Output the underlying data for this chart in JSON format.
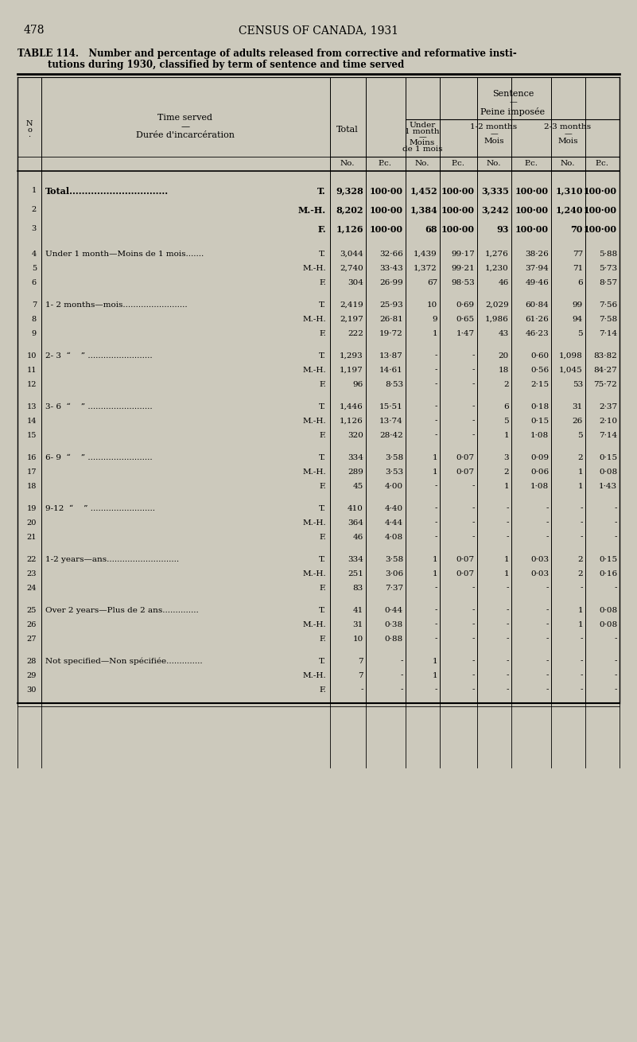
{
  "page_num": "478",
  "page_title": "CENSUS OF CANADA, 1931",
  "table_title_line1": "TABLE 114.   Number and percentage of adults released from corrective and reformative insti-",
  "table_title_line2": "tutions during 1930, classified by term of sentence and time served",
  "bg_color": "#ccc9bc",
  "rows": [
    {
      "no": "1",
      "label": "Total................................",
      "suffix": "T.",
      "indent": false,
      "bold": true,
      "d": [
        "9,328",
        "100·00",
        "1,452",
        "100·00",
        "3,335",
        "100·00",
        "1,310",
        "100·00"
      ]
    },
    {
      "no": "2",
      "label": "M.-H.",
      "suffix": "",
      "indent": true,
      "bold": true,
      "d": [
        "8,202",
        "100·00",
        "1,384",
        "100·00",
        "3,242",
        "100·00",
        "1,240",
        "100·00"
      ]
    },
    {
      "no": "3",
      "label": "F.",
      "suffix": "",
      "indent": true,
      "bold": true,
      "d": [
        "1,126",
        "100·00",
        "68",
        "100·00",
        "93",
        "100·00",
        "70",
        "100·00"
      ]
    },
    {
      "no": "4",
      "label": "Under 1 month—Moins de 1 mois.......",
      "suffix": "T.",
      "indent": false,
      "bold": false,
      "d": [
        "3,044",
        "32·66",
        "1,439",
        "99·17",
        "1,276",
        "38·26",
        "77",
        "5·88"
      ]
    },
    {
      "no": "5",
      "label": "M.-H.",
      "suffix": "",
      "indent": true,
      "bold": false,
      "d": [
        "2,740",
        "33·43",
        "1,372",
        "99·21",
        "1,230",
        "37·94",
        "71",
        "5·73"
      ]
    },
    {
      "no": "6",
      "label": "F.",
      "suffix": "",
      "indent": true,
      "bold": false,
      "d": [
        "304",
        "26·99",
        "67",
        "98·53",
        "46",
        "49·46",
        "6",
        "8·57"
      ]
    },
    {
      "no": "7",
      "label": "1- 2 months—mois.........................",
      "suffix": "T.",
      "indent": false,
      "bold": false,
      "d": [
        "2,419",
        "25·93",
        "10",
        "0·69",
        "2,029",
        "60·84",
        "99",
        "7·56"
      ]
    },
    {
      "no": "8",
      "label": "M.-H.",
      "suffix": "",
      "indent": true,
      "bold": false,
      "d": [
        "2,197",
        "26·81",
        "9",
        "0·65",
        "1,986",
        "61·26",
        "94",
        "7·58"
      ]
    },
    {
      "no": "9",
      "label": "F.",
      "suffix": "",
      "indent": true,
      "bold": false,
      "d": [
        "222",
        "19·72",
        "1",
        "1·47",
        "43",
        "46·23",
        "5",
        "7·14"
      ]
    },
    {
      "no": "10",
      "label": "2- 3  “    ” .........................",
      "suffix": "T.",
      "indent": false,
      "bold": false,
      "d": [
        "1,293",
        "13·87",
        "-",
        "-",
        "20",
        "0·60",
        "1,098",
        "83·82"
      ]
    },
    {
      "no": "11",
      "label": "M.-H.",
      "suffix": "",
      "indent": true,
      "bold": false,
      "d": [
        "1,197",
        "14·61",
        "-",
        "-",
        "18",
        "0·56",
        "1,045",
        "84·27"
      ]
    },
    {
      "no": "12",
      "label": "F.",
      "suffix": "",
      "indent": true,
      "bold": false,
      "d": [
        "96",
        "8·53",
        "-",
        "-",
        "2",
        "2·15",
        "53",
        "75·72"
      ]
    },
    {
      "no": "13",
      "label": "3- 6  “    ” .........................",
      "suffix": "T.",
      "indent": false,
      "bold": false,
      "d": [
        "1,446",
        "15·51",
        "-",
        "-",
        "6",
        "0·18",
        "31",
        "2·37"
      ]
    },
    {
      "no": "14",
      "label": "M.-H.",
      "suffix": "",
      "indent": true,
      "bold": false,
      "d": [
        "1,126",
        "13·74",
        "-",
        "-",
        "5",
        "0·15",
        "26",
        "2·10"
      ]
    },
    {
      "no": "15",
      "label": "F.",
      "suffix": "",
      "indent": true,
      "bold": false,
      "d": [
        "320",
        "28·42",
        "-",
        "-",
        "1",
        "1·08",
        "5",
        "7·14"
      ]
    },
    {
      "no": "16",
      "label": "6- 9  “    ” .........................",
      "suffix": "T.",
      "indent": false,
      "bold": false,
      "d": [
        "334",
        "3·58",
        "1",
        "0·07",
        "3",
        "0·09",
        "2",
        "0·15"
      ]
    },
    {
      "no": "17",
      "label": "M.-H.",
      "suffix": "",
      "indent": true,
      "bold": false,
      "d": [
        "289",
        "3·53",
        "1",
        "0·07",
        "2",
        "0·06",
        "1",
        "0·08"
      ]
    },
    {
      "no": "18",
      "label": "F.",
      "suffix": "",
      "indent": true,
      "bold": false,
      "d": [
        "45",
        "4·00",
        "-",
        "-",
        "1",
        "1·08",
        "1",
        "1·43"
      ]
    },
    {
      "no": "19",
      "label": "9-12  “    ” .........................",
      "suffix": "T.",
      "indent": false,
      "bold": false,
      "d": [
        "410",
        "4·40",
        "-",
        "-",
        "-",
        "-",
        "-",
        "-"
      ]
    },
    {
      "no": "20",
      "label": "M.-H.",
      "suffix": "",
      "indent": true,
      "bold": false,
      "d": [
        "364",
        "4·44",
        "-",
        "-",
        "-",
        "-",
        "-",
        "-"
      ]
    },
    {
      "no": "21",
      "label": "F.",
      "suffix": "",
      "indent": true,
      "bold": false,
      "d": [
        "46",
        "4·08",
        "-",
        "-",
        "-",
        "-",
        "-",
        "-"
      ]
    },
    {
      "no": "22",
      "label": "1-2 years—ans............................",
      "suffix": "T.",
      "indent": false,
      "bold": false,
      "d": [
        "334",
        "3·58",
        "1",
        "0·07",
        "1",
        "0·03",
        "2",
        "0·15"
      ]
    },
    {
      "no": "23",
      "label": "M.-H.",
      "suffix": "",
      "indent": true,
      "bold": false,
      "d": [
        "251",
        "3·06",
        "1",
        "0·07",
        "1",
        "0·03",
        "2",
        "0·16"
      ]
    },
    {
      "no": "24",
      "label": "F.",
      "suffix": "",
      "indent": true,
      "bold": false,
      "d": [
        "83",
        "7·37",
        "-",
        "-",
        "-",
        "-",
        "-",
        "-"
      ]
    },
    {
      "no": "25",
      "label": "Over 2 years—Plus de 2 ans..............",
      "suffix": "T.",
      "indent": false,
      "bold": false,
      "d": [
        "41",
        "0·44",
        "-",
        "-",
        "-",
        "-",
        "1",
        "0·08"
      ]
    },
    {
      "no": "26",
      "label": "M.-H.",
      "suffix": "",
      "indent": true,
      "bold": false,
      "d": [
        "31",
        "0·38",
        "-",
        "-",
        "-",
        "-",
        "1",
        "0·08"
      ]
    },
    {
      "no": "27",
      "label": "F.",
      "suffix": "",
      "indent": true,
      "bold": false,
      "d": [
        "10",
        "0·88",
        "-",
        "-",
        "-",
        "-",
        "-",
        "-"
      ]
    },
    {
      "no": "28",
      "label": "Not specified—Non spécifiée..............",
      "suffix": "T.",
      "indent": false,
      "bold": false,
      "d": [
        "7",
        "-",
        "1",
        "-",
        "-",
        "-",
        "-",
        "-"
      ]
    },
    {
      "no": "29",
      "label": "M.-H.",
      "suffix": "",
      "indent": true,
      "bold": false,
      "d": [
        "7",
        "-",
        "1",
        "-",
        "-",
        "-",
        "-",
        "-"
      ]
    },
    {
      "no": "30",
      "label": "F.",
      "suffix": "",
      "indent": true,
      "bold": false,
      "d": [
        "-",
        "-",
        "-",
        "-",
        "-",
        "-",
        "-",
        "-"
      ]
    }
  ],
  "group_ends": [
    2,
    5,
    8,
    11,
    14,
    17,
    20,
    23,
    26
  ]
}
